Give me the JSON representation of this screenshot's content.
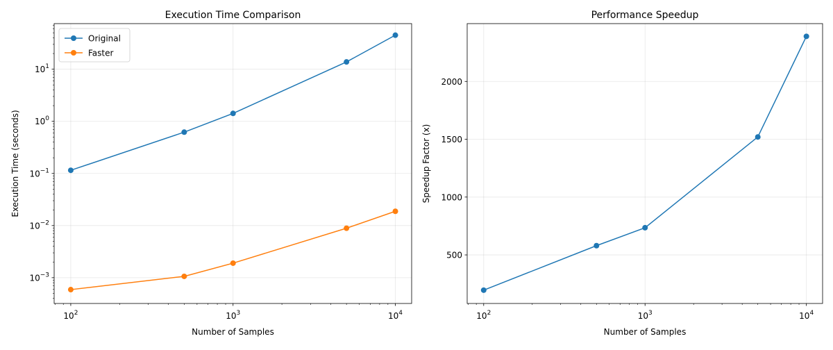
{
  "chart_data": [
    {
      "type": "line",
      "title": "Execution Time Comparison",
      "xlabel": "Number of Samples",
      "ylabel": "Execution Time (seconds)",
      "xscale": "log",
      "yscale": "log",
      "x": [
        100,
        500,
        1000,
        5000,
        10000
      ],
      "xlim": [
        79,
        12600
      ],
      "ylim": [
        0.00032,
        75
      ],
      "xticks": [
        {
          "value": 100,
          "base": "10",
          "exp": "2"
        },
        {
          "value": 1000,
          "base": "10",
          "exp": "3"
        },
        {
          "value": 10000,
          "base": "10",
          "exp": "4"
        }
      ],
      "yticks": [
        {
          "value": 0.001,
          "base": "10",
          "exp": "−3"
        },
        {
          "value": 0.01,
          "base": "10",
          "exp": "−2"
        },
        {
          "value": 0.1,
          "base": "10",
          "exp": "−1"
        },
        {
          "value": 1,
          "base": "10",
          "exp": "0"
        },
        {
          "value": 10,
          "base": "10",
          "exp": "1"
        }
      ],
      "grid": true,
      "legend": "top-left",
      "series": [
        {
          "name": "Original",
          "color": "#1f77b4",
          "values": [
            0.115,
            0.62,
            1.42,
            13.8,
            45.0
          ]
        },
        {
          "name": "Faster",
          "color": "#ff7f0e",
          "values": [
            0.00059,
            0.00106,
            0.0019,
            0.0089,
            0.0188
          ]
        }
      ]
    },
    {
      "type": "line",
      "title": "Performance Speedup",
      "xlabel": "Number of Samples",
      "ylabel": "Speedup Factor (x)",
      "xscale": "log",
      "yscale": "linear",
      "x": [
        100,
        500,
        1000,
        5000,
        10000
      ],
      "xlim": [
        79,
        12600
      ],
      "ylim": [
        80,
        2500
      ],
      "xticks": [
        {
          "value": 100,
          "base": "10",
          "exp": "2"
        },
        {
          "value": 1000,
          "base": "10",
          "exp": "3"
        },
        {
          "value": 10000,
          "base": "10",
          "exp": "4"
        }
      ],
      "yticks": [
        {
          "value": 500,
          "label": "500"
        },
        {
          "value": 1000,
          "label": "1000"
        },
        {
          "value": 1500,
          "label": "1500"
        },
        {
          "value": 2000,
          "label": "2000"
        }
      ],
      "grid": true,
      "series": [
        {
          "color": "#1f77b4",
          "values": [
            195,
            580,
            735,
            1520,
            2390
          ]
        }
      ]
    }
  ]
}
